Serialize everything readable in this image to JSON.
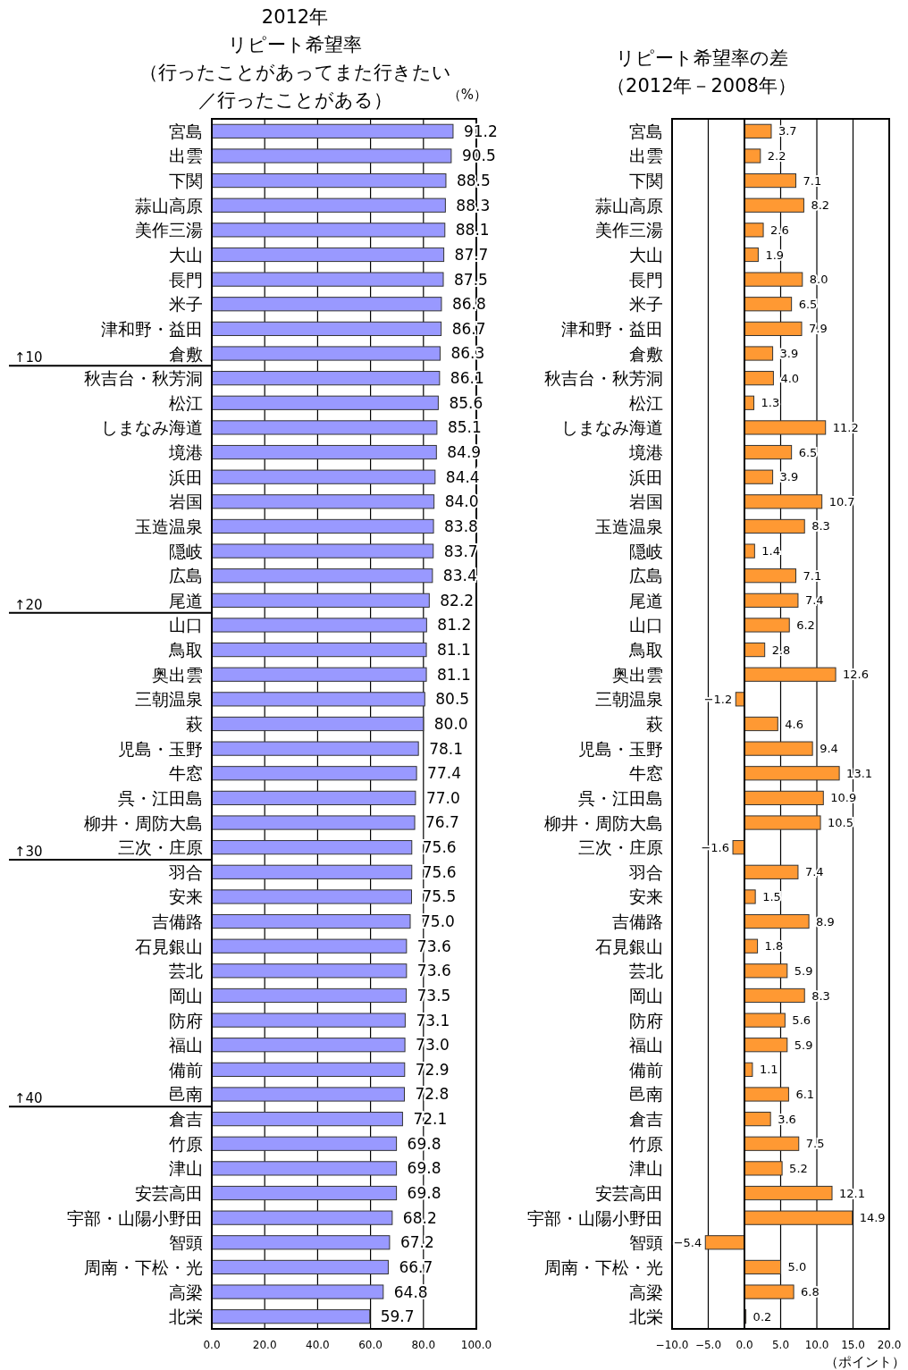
{
  "chart_data": [
    {
      "type": "bar",
      "orientation": "horizontal",
      "title": "2012年",
      "subtitle": "リピート希望率（行ったことがあってまた行きたい／行ったことがある）",
      "categories": [
        "宮島",
        "出雲",
        "下関",
        "蒜山高原",
        "美作三湯",
        "大山",
        "長門",
        "米子",
        "津和野・益田",
        "倉敷",
        "秋吉台・秋芳洞",
        "松江",
        "しまなみ海道",
        "境港",
        "浜田",
        "岩国",
        "玉造温泉",
        "隠岐",
        "広島",
        "尾道",
        "山口",
        "鳥取",
        "奥出雲",
        "三朝温泉",
        "萩",
        "児島・玉野",
        "牛窓",
        "呉・江田島",
        "柳井・周防大島",
        "三次・庄原",
        "羽合",
        "安来",
        "吉備路",
        "石見銀山",
        "芸北",
        "岡山",
        "防府",
        "福山",
        "備前",
        "邑南",
        "倉吉",
        "竹原",
        "津山",
        "安芸高田",
        "宇部・山陽小野田",
        "智頭",
        "周南・下松・光",
        "高梁",
        "北栄"
      ],
      "values": [
        91.2,
        90.5,
        88.5,
        88.3,
        88.1,
        87.7,
        87.5,
        86.8,
        86.7,
        86.3,
        86.1,
        85.6,
        85.1,
        84.9,
        84.4,
        84.0,
        83.8,
        83.7,
        83.4,
        82.2,
        81.2,
        81.1,
        81.1,
        80.5,
        80.0,
        78.1,
        77.4,
        77.0,
        76.7,
        75.6,
        75.6,
        75.5,
        75.0,
        73.6,
        73.6,
        73.5,
        73.1,
        73.0,
        72.9,
        72.8,
        72.1,
        69.8,
        69.8,
        69.8,
        68.2,
        67.2,
        66.7,
        64.8,
        59.7
      ],
      "value_labels": [
        "91.2",
        "90.5",
        "88.5",
        "88.3",
        "88.1",
        "87.7",
        "87.5",
        "86.8",
        "86.7",
        "86.3",
        "86.1",
        "85.6",
        "85.1",
        "84.9",
        "84.4",
        "84.0",
        "83.8",
        "83.7",
        "83.4",
        "82.2",
        "81.2",
        "81.1",
        "81.1",
        "80.5",
        "80.0",
        "78.1",
        "77.4",
        "77.0",
        "76.7",
        "75.6",
        "75.6",
        "75.5",
        "75.0",
        "73.6",
        "73.6",
        "73.5",
        "73.1",
        "73.0",
        "72.9",
        "72.8",
        "72.1",
        "69.8",
        "69.8",
        "69.8",
        "68.2",
        "67.2",
        "66.7",
        "64.8",
        "59.7"
      ],
      "color": "#9999ff",
      "xlim": [
        0,
        100
      ],
      "xticks": [
        {
          "value": 0,
          "label": "0.0"
        },
        {
          "value": 20,
          "label": "20.0"
        },
        {
          "value": 40,
          "label": "40.0"
        },
        {
          "value": 60,
          "label": "60.0"
        },
        {
          "value": 80,
          "label": "80.0"
        },
        {
          "value": 100,
          "label": "100.0"
        }
      ],
      "grid": "x",
      "annotations": [
        "（%）"
      ],
      "ref_lines": [
        {
          "axis": "y",
          "value": "倉敷",
          "label": "↑10"
        },
        {
          "axis": "y",
          "value": "尾道",
          "label": "↑20"
        },
        {
          "axis": "y",
          "value": "三次・庄原",
          "label": "↑30"
        },
        {
          "axis": "y",
          "value": "邑南",
          "label": "↑40"
        }
      ]
    },
    {
      "type": "bar",
      "orientation": "horizontal",
      "title": "リピート希望率の差（2012年－2008年）",
      "categories": [
        "宮島",
        "出雲",
        "下関",
        "蒜山高原",
        "美作三湯",
        "大山",
        "長門",
        "米子",
        "津和野・益田",
        "倉敷",
        "秋吉台・秋芳洞",
        "松江",
        "しまなみ海道",
        "境港",
        "浜田",
        "岩国",
        "玉造温泉",
        "隠岐",
        "広島",
        "尾道",
        "山口",
        "鳥取",
        "奥出雲",
        "三朝温泉",
        "萩",
        "児島・玉野",
        "牛窓",
        "呉・江田島",
        "柳井・周防大島",
        "三次・庄原",
        "羽合",
        "安来",
        "吉備路",
        "石見銀山",
        "芸北",
        "岡山",
        "防府",
        "福山",
        "備前",
        "邑南",
        "倉吉",
        "竹原",
        "津山",
        "安芸高田",
        "宇部・山陽小野田",
        "智頭",
        "周南・下松・光",
        "高梁",
        "北栄"
      ],
      "values": [
        3.7,
        2.2,
        7.1,
        8.2,
        2.6,
        1.9,
        8.0,
        6.5,
        7.9,
        3.9,
        4.0,
        1.3,
        11.2,
        6.5,
        3.9,
        10.7,
        8.3,
        1.4,
        7.1,
        7.4,
        6.2,
        2.8,
        12.6,
        -1.2,
        4.6,
        9.4,
        13.1,
        10.9,
        10.5,
        -1.6,
        7.4,
        1.5,
        8.9,
        1.8,
        5.9,
        8.3,
        5.6,
        5.9,
        1.1,
        6.1,
        3.6,
        7.5,
        5.2,
        12.1,
        14.9,
        -5.4,
        5.0,
        6.8,
        0.2
      ],
      "value_labels": [
        "3.7",
        "2.2",
        "7.1",
        "8.2",
        "2.6",
        "1.9",
        "8.0",
        "6.5",
        "7.9",
        "3.9",
        "4.0",
        "1.3",
        "11.2",
        "6.5",
        "3.9",
        "10.7",
        "8.3",
        "1.4",
        "7.1",
        "7.4",
        "6.2",
        "2.8",
        "12.6",
        "−1.2",
        "4.6",
        "9.4",
        "13.1",
        "10.9",
        "10.5",
        "−1.6",
        "7.4",
        "1.5",
        "8.9",
        "1.8",
        "5.9",
        "8.3",
        "5.6",
        "5.9",
        "1.1",
        "6.1",
        "3.6",
        "7.5",
        "5.2",
        "12.1",
        "14.9",
        "−5.4",
        "5.0",
        "6.8",
        "0.2"
      ],
      "color": "#ff9933",
      "xlim": [
        -10,
        20
      ],
      "xticks": [
        {
          "value": -10,
          "label": "−10.0"
        },
        {
          "value": -5,
          "label": "−5.0"
        },
        {
          "value": 0,
          "label": "0.0"
        },
        {
          "value": 5,
          "label": "5.0"
        },
        {
          "value": 10,
          "label": "10.0"
        },
        {
          "value": 15,
          "label": "15.0"
        },
        {
          "value": 20,
          "label": "20.0"
        }
      ],
      "grid": "x",
      "xlabel": "（ポイント）"
    }
  ]
}
